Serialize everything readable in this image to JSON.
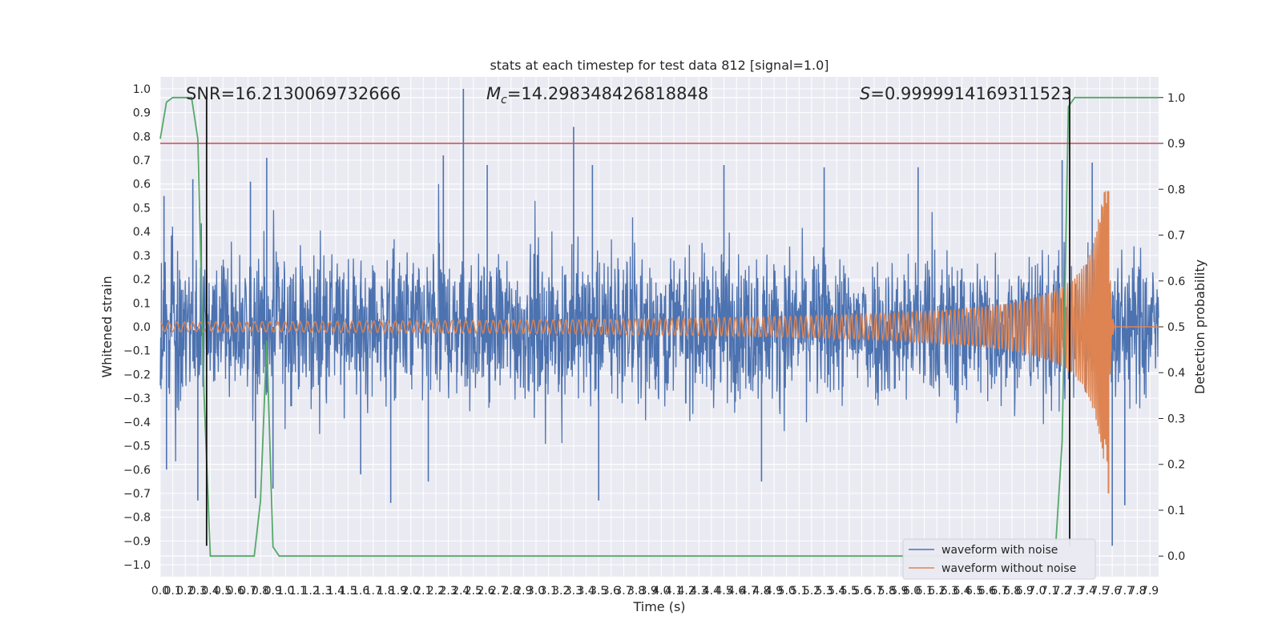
{
  "chart_data": {
    "type": "line",
    "title": "stats at each timestep for test data 812 [signal=1.0]",
    "xlabel": "Time (s)",
    "ylabel": "Whitened strain",
    "ylabel_right": "Detection probability",
    "xlim": [
      0.0,
      7.97
    ],
    "ylim": [
      -1.05,
      1.05
    ],
    "ylim_right": [
      -0.045,
      1.045
    ],
    "x_ticks": [
      0.0,
      0.1,
      0.2,
      0.3,
      0.4,
      0.5,
      0.6,
      0.7,
      0.8,
      0.9,
      1.0,
      1.1,
      1.2,
      1.3,
      1.4,
      1.5,
      1.6,
      1.7,
      1.8,
      1.9,
      2.0,
      2.1,
      2.2,
      2.3,
      2.4,
      2.5,
      2.6,
      2.7,
      2.8,
      2.9,
      3.0,
      3.1,
      3.2,
      3.3,
      3.4,
      3.5,
      3.6,
      3.7,
      3.8,
      3.9,
      4.0,
      4.1,
      4.2,
      4.3,
      4.4,
      4.5,
      4.6,
      4.7,
      4.8,
      4.9,
      5.0,
      5.1,
      5.2,
      5.3,
      5.4,
      5.5,
      5.6,
      5.7,
      5.8,
      5.9,
      6.0,
      6.1,
      6.2,
      6.3,
      6.4,
      6.5,
      6.6,
      6.7,
      6.8,
      6.9,
      7.0,
      7.1,
      7.2,
      7.3,
      7.4,
      7.5,
      7.6,
      7.7,
      7.8,
      7.9
    ],
    "x_tick_labels": [
      "0.0",
      "0.1",
      "0.2",
      "0.3",
      "0.4",
      "0.5",
      "0.6",
      "0.7",
      "0.8",
      "0.9",
      "1.0",
      "1.1",
      "1.2",
      "1.3",
      "1.4",
      "1.5",
      "1.6",
      "1.7",
      "1.8",
      "1.9",
      "2.0",
      "2.1",
      "2.2",
      "2.3",
      "2.4",
      "2.5",
      "2.6",
      "2.7",
      "2.8",
      "2.9",
      "3.0",
      "3.1",
      "3.2",
      "3.3",
      "3.4",
      "3.5",
      "3.6",
      "3.7",
      "3.8",
      "3.9",
      "4.0",
      "4.1",
      "4.2",
      "4.3",
      "4.4",
      "4.5",
      "4.6",
      "4.7",
      "4.8",
      "4.9",
      "5.0",
      "5.1",
      "5.2",
      "5.3",
      "5.4",
      "5.5",
      "5.6",
      "5.7",
      "5.8",
      "5.9",
      "6.0",
      "6.1",
      "6.2",
      "6.3",
      "6.4",
      "6.5",
      "6.6",
      "6.7",
      "6.8",
      "6.9",
      "7.0",
      "7.1",
      "7.2",
      "7.3",
      "7.4",
      "7.5",
      "7.6",
      "7.7",
      "7.8",
      "7.9"
    ],
    "y_ticks": [
      -1.0,
      -0.9,
      -0.8,
      -0.7,
      -0.6,
      -0.5,
      -0.4,
      -0.3,
      -0.2,
      -0.1,
      0.0,
      0.1,
      0.2,
      0.3,
      0.4,
      0.5,
      0.6,
      0.7,
      0.8,
      0.9,
      1.0
    ],
    "y_tick_labels": [
      "−1.0",
      "−0.9",
      "−0.8",
      "−0.7",
      "−0.6",
      "−0.5",
      "−0.4",
      "−0.3",
      "−0.2",
      "−0.1",
      "0.0",
      "0.1",
      "0.2",
      "0.3",
      "0.4",
      "0.5",
      "0.6",
      "0.7",
      "0.8",
      "0.9",
      "1.0"
    ],
    "y_ticks_right": [
      0.0,
      0.1,
      0.2,
      0.3,
      0.4,
      0.5,
      0.6,
      0.7,
      0.8,
      0.9,
      1.0
    ],
    "y_tick_labels_right": [
      "0.0",
      "0.1",
      "0.2",
      "0.3",
      "0.4",
      "0.5",
      "0.6",
      "0.7",
      "0.8",
      "0.9",
      "1.0"
    ],
    "grid": true,
    "legend_position": "bottom-right",
    "series": [
      {
        "name": "waveform with noise",
        "axis": "left",
        "color": "#4c72b0",
        "kind": "noise",
        "envelope_abs": 0.34,
        "envelope_peaks": [
          {
            "x": 0.03,
            "y": 0.55
          },
          {
            "x": 0.05,
            "y": -0.6
          },
          {
            "x": 0.26,
            "y": 0.62
          },
          {
            "x": 0.3,
            "y": -0.73
          },
          {
            "x": 0.72,
            "y": 0.61
          },
          {
            "x": 0.76,
            "y": -0.72
          },
          {
            "x": 0.85,
            "y": 0.71
          },
          {
            "x": 0.9,
            "y": -0.68
          },
          {
            "x": 1.6,
            "y": -0.62
          },
          {
            "x": 1.84,
            "y": -0.74
          },
          {
            "x": 2.14,
            "y": -0.65
          },
          {
            "x": 2.26,
            "y": 0.72
          },
          {
            "x": 2.42,
            "y": 1.0
          },
          {
            "x": 2.61,
            "y": 0.68
          },
          {
            "x": 3.3,
            "y": 0.84
          },
          {
            "x": 3.45,
            "y": 0.68
          },
          {
            "x": 3.5,
            "y": -0.73
          },
          {
            "x": 4.5,
            "y": 0.68
          },
          {
            "x": 4.8,
            "y": -0.65
          },
          {
            "x": 5.3,
            "y": 0.67
          },
          {
            "x": 6.05,
            "y": 0.67
          },
          {
            "x": 7.2,
            "y": 0.7
          },
          {
            "x": 7.44,
            "y": 0.69
          },
          {
            "x": 7.6,
            "y": -0.92
          },
          {
            "x": 7.7,
            "y": -0.75
          }
        ]
      },
      {
        "name": "waveform without noise",
        "axis": "left",
        "color": "#dd8452",
        "kind": "chirp",
        "start_amplitude": 0.02,
        "merger_time": 7.57,
        "peak_amplitude": 0.57,
        "min_amplitude": -0.7,
        "ringdown_end": 7.62
      },
      {
        "name": "detection probability",
        "axis": "right",
        "color": "#55a868",
        "x": [
          0.0,
          0.05,
          0.1,
          0.15,
          0.2,
          0.25,
          0.3,
          0.35,
          0.4,
          0.45,
          0.5,
          0.55,
          0.6,
          0.65,
          0.7,
          0.75,
          0.8,
          0.85,
          0.9,
          0.95,
          1.0,
          1.5,
          2.0,
          2.5,
          3.0,
          3.5,
          4.0,
          4.5,
          5.0,
          5.5,
          6.0,
          6.5,
          7.0,
          7.05,
          7.1,
          7.15,
          7.2,
          7.25,
          7.3,
          7.35,
          7.4,
          7.45,
          7.5,
          7.6,
          7.7,
          7.8,
          7.97
        ],
        "values": [
          0.91,
          0.99,
          1.0,
          1.0,
          1.0,
          1.0,
          0.91,
          0.35,
          0.0,
          0.0,
          0.0,
          0.0,
          0.0,
          0.0,
          0.0,
          0.0,
          0.12,
          0.47,
          0.02,
          0.0,
          0.0,
          0.0,
          0.0,
          0.0,
          0.0,
          0.0,
          0.0,
          0.0,
          0.0,
          0.0,
          0.0,
          0.0,
          0.0,
          0.0,
          0.0,
          0.03,
          0.25,
          0.98,
          1.0,
          1.0,
          1.0,
          1.0,
          1.0,
          1.0,
          1.0,
          1.0,
          1.0
        ]
      }
    ],
    "threshold": {
      "value": 0.9,
      "axis": "right",
      "color": "#c44e52"
    },
    "vertical_markers": [
      0.37,
      7.26
    ],
    "vertical_markers_range": [
      -0.92,
      1.0
    ],
    "annotations": [
      {
        "text": "SNR=16.2130069732666",
        "x": 0.2,
        "y": 1.02
      },
      {
        "text": "M",
        "sub": "c",
        "value": "=14.298348426818848",
        "x": 2.6,
        "y": 1.02
      },
      {
        "text": "S",
        "value": "=0.9999914169311523",
        "x": 5.5,
        "y": 1.02
      }
    ]
  }
}
